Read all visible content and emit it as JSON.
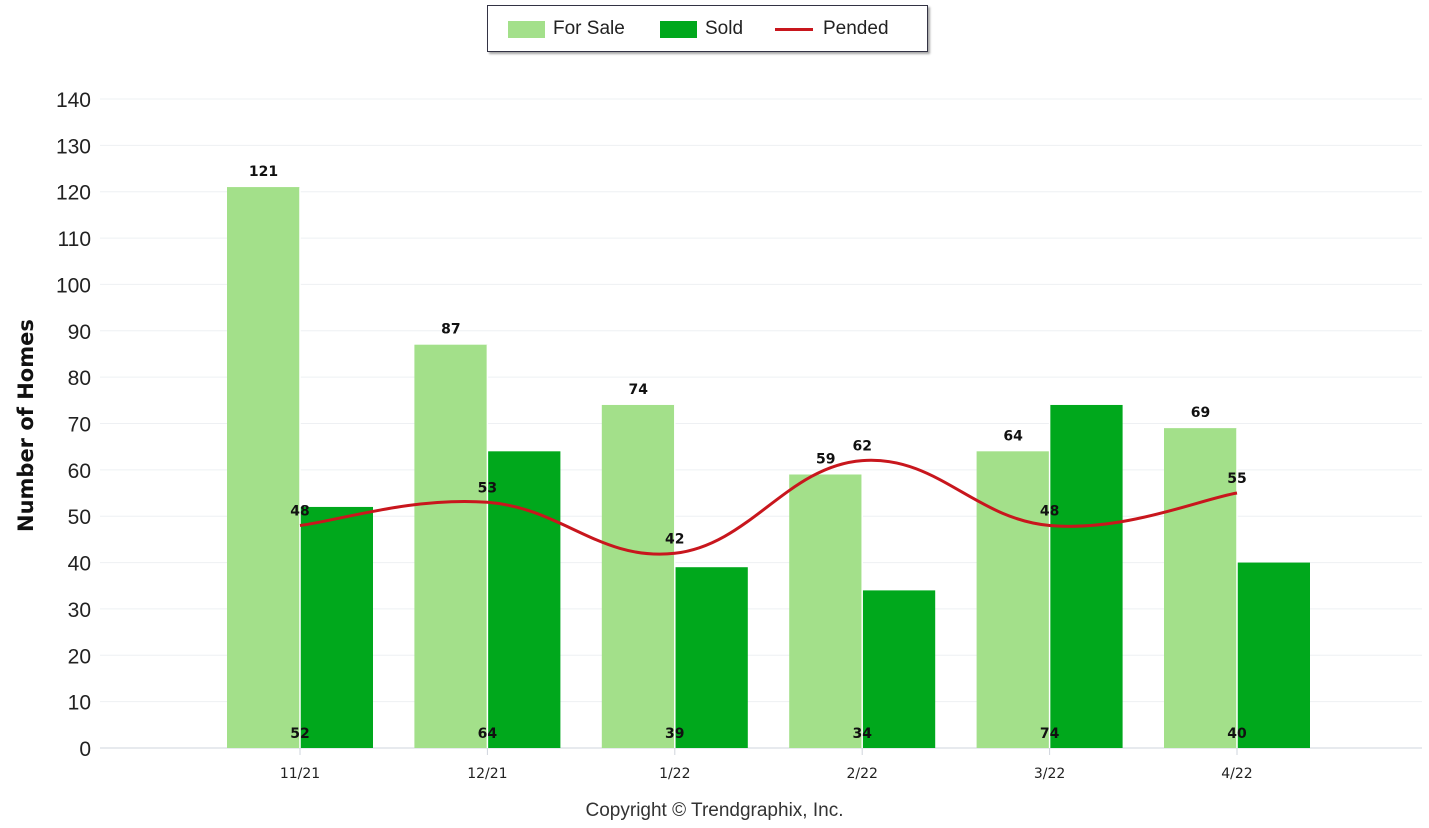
{
  "chart_data": {
    "type": "bar",
    "categories": [
      "11/21",
      "12/21",
      "1/22",
      "2/22",
      "3/22",
      "4/22"
    ],
    "series": [
      {
        "name": "For Sale",
        "type": "bar",
        "color": "#a3e08a",
        "values": [
          121,
          87,
          74,
          59,
          64,
          69
        ]
      },
      {
        "name": "Sold",
        "type": "bar",
        "color": "#00a81c",
        "values": [
          52,
          64,
          39,
          34,
          74,
          40
        ]
      },
      {
        "name": "Pended",
        "type": "line",
        "color": "#c8161d",
        "values": [
          48,
          53,
          42,
          62,
          48,
          55
        ]
      }
    ],
    "ylabel": "Number of Homes",
    "xlabel": "",
    "ylim": [
      0,
      140
    ],
    "yticks": [
      0,
      10,
      20,
      30,
      40,
      50,
      60,
      70,
      80,
      90,
      100,
      110,
      120,
      130,
      140
    ],
    "grid": true,
    "legend_position": "top-center"
  },
  "legend": {
    "items": [
      {
        "label": "For Sale",
        "color": "#a3e08a"
      },
      {
        "label": "Sold",
        "color": "#00a81c"
      },
      {
        "label": "Pended",
        "color": "#c8161d"
      }
    ]
  },
  "footer": {
    "copyright": "Copyright © Trendgraphix, Inc."
  }
}
